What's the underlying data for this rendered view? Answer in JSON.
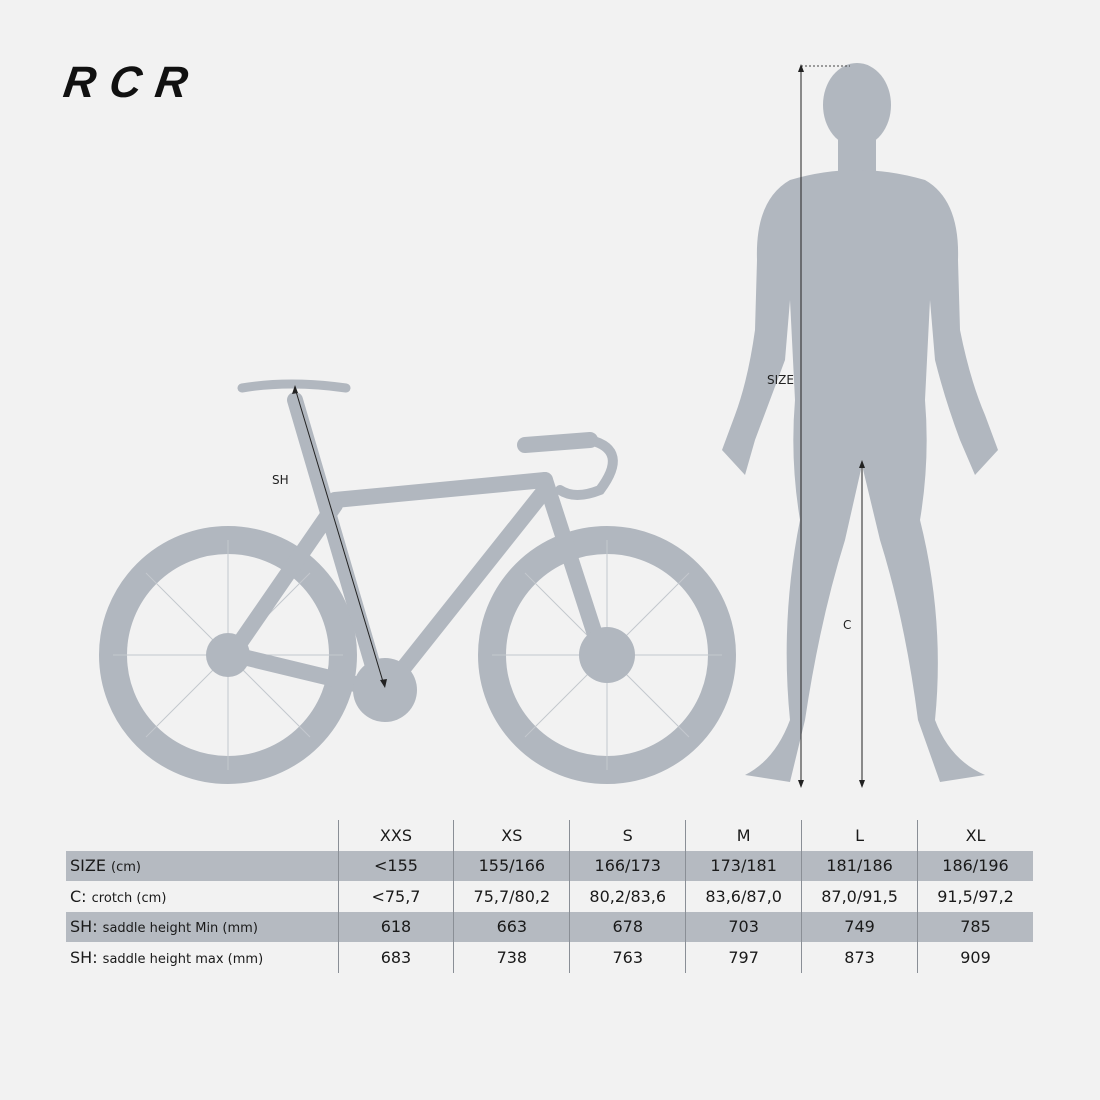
{
  "logo": "RCR",
  "labels": {
    "saddle_height": "SH",
    "size": "SIZE",
    "crotch": "C"
  },
  "colors": {
    "background": "#f2f2f2",
    "silhouette": "#b1b7bf",
    "row_shade": "#b5bac1"
  },
  "table": {
    "sizes": [
      "XXS",
      "XS",
      "S",
      "M",
      "L",
      "XL"
    ],
    "rows": [
      {
        "key": "SIZE",
        "unit": "(cm)",
        "shaded": true,
        "values": [
          "<155",
          "155/166",
          "166/173",
          "173/181",
          "181/186",
          "186/196"
        ]
      },
      {
        "key": "C:",
        "unit": "crotch (cm)",
        "shaded": false,
        "values": [
          "<75,7",
          "75,7/80,2",
          "80,2/83,6",
          "83,6/87,0",
          "87,0/91,5",
          "91,5/97,2"
        ]
      },
      {
        "key": "SH:",
        "unit": "saddle height Min (mm)",
        "shaded": true,
        "values": [
          "618",
          "663",
          "678",
          "703",
          "749",
          "785"
        ]
      },
      {
        "key": "SH:",
        "unit": "saddle height max (mm)",
        "shaded": false,
        "values": [
          "683",
          "738",
          "763",
          "797",
          "873",
          "909"
        ]
      }
    ]
  }
}
